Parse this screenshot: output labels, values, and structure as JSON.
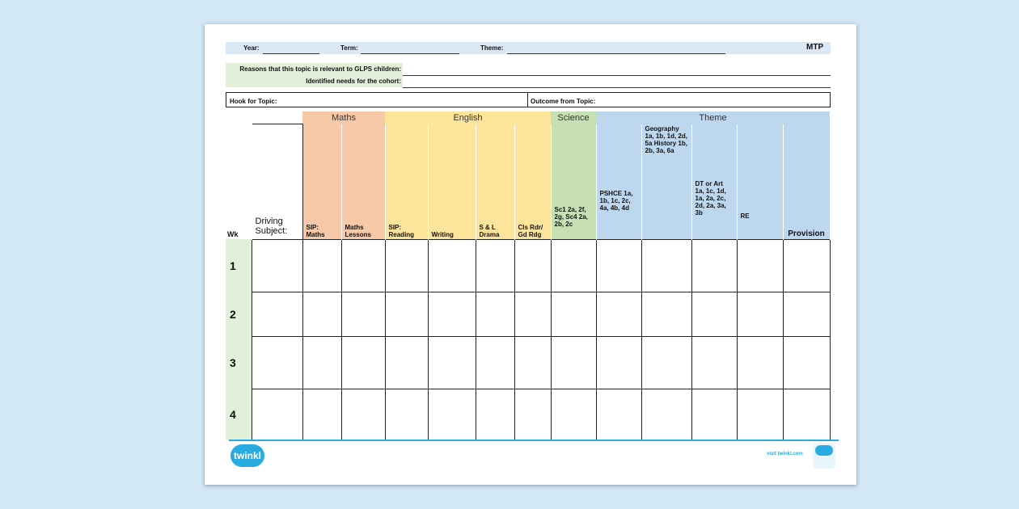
{
  "header": {
    "year_label": "Year:",
    "term_label": "Term:",
    "theme_label": "Theme:",
    "doc_code": "MTP"
  },
  "context": {
    "reasons_label": "Reasons that this topic is relevant to GLPS children:",
    "needs_label": "Identified needs for the cohort:",
    "hook_label": "Hook for Topic:",
    "outcome_label": "Outcome from Topic:"
  },
  "grid": {
    "wk_label": "Wk",
    "driving_label": "Driving Subject:",
    "groups": {
      "maths": "Maths",
      "english": "English",
      "science": "Science",
      "theme": "Theme"
    },
    "columns": [
      "SIP: Maths",
      "Maths Lessons",
      "SIP: Reading",
      "Writing",
      "S & L Drama",
      "Cls Rdr/ Gd Rdg",
      "Sc1 2a, 2f, 2g, Sc4 2a, 2b, 2c",
      "PSHCE 1a, 1b, 1c, 2c, 4a, 4b, 4d",
      "Geography 1a, 1b, 1d, 2d, 5a History 1b, 2b, 3a, 6a",
      "DT or Art 1a, 1c, 1d, 1a, 2a, 2c, 2d, 2a, 3a, 3b",
      "RE",
      "Provision"
    ],
    "weeks": [
      "1",
      "2",
      "3",
      "4"
    ],
    "colors": {
      "maths": "#f7c9a9",
      "english": "#fde49b",
      "science": "#c6e0b4",
      "theme": "#bdd7ee",
      "wk": "#e2efd9"
    }
  },
  "footer": {
    "brand": "twinkl",
    "link": "visit twinkl.com",
    "accent": "#29abe2"
  }
}
